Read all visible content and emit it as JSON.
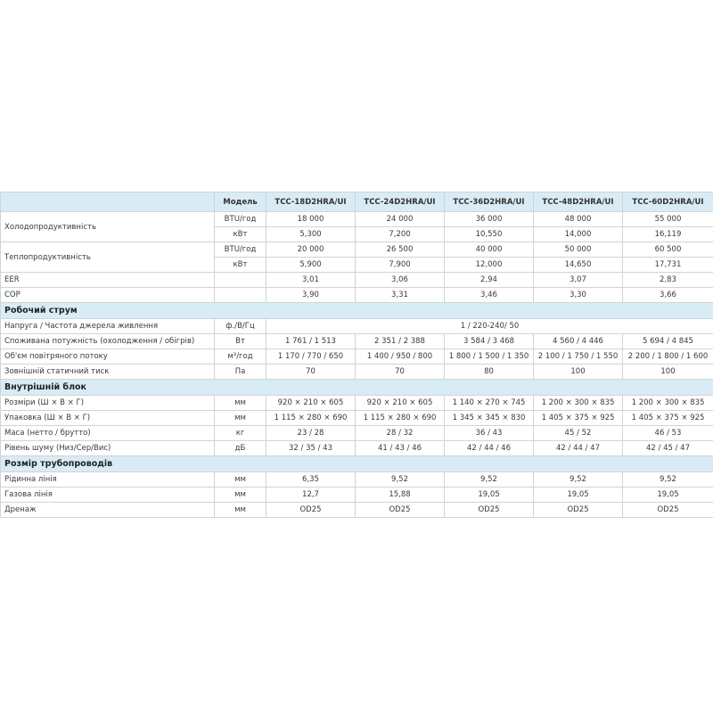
{
  "table": {
    "header": {
      "label": "Модель",
      "models": [
        "TCC-18D2HRA/UI",
        "TCC-24D2HRA/UI",
        "TCC-36D2HRA/UI",
        "TCC-48D2HRA/UI",
        "TCC-60D2HRA/UI"
      ]
    },
    "groups": [
      {
        "rows": [
          {
            "label": "Холодопродуктивність",
            "lines": [
              {
                "unit": "BTU/год",
                "values": [
                  "18 000",
                  "24 000",
                  "36 000",
                  "48 000",
                  "55 000"
                ]
              },
              {
                "unit": "кВт",
                "values": [
                  "5,300",
                  "7,200",
                  "10,550",
                  "14,000",
                  "16,119"
                ]
              }
            ]
          },
          {
            "label": "Теплопродуктивність",
            "lines": [
              {
                "unit": "BTU/год",
                "values": [
                  "20 000",
                  "26 500",
                  "40 000",
                  "50 000",
                  "60 500"
                ]
              },
              {
                "unit": "кВт",
                "values": [
                  "5,900",
                  "7,900",
                  "12,000",
                  "14,650",
                  "17,731"
                ]
              }
            ]
          },
          {
            "label": "EER",
            "values": [
              "3,01",
              "3,06",
              "2,94",
              "3,07",
              "2,83"
            ]
          },
          {
            "label": "COP",
            "values": [
              "3,90",
              "3,31",
              "3,46",
              "3,30",
              "3,66"
            ]
          }
        ]
      },
      {
        "title": "Робочий струм",
        "rows": [
          {
            "label": "Напруга / Частота джерела живлення",
            "unit": "ф./В/Гц",
            "value": "1 / 220-240/ 50"
          },
          {
            "label": "Споживана потужність (охолодження / обігрів)",
            "unit": "Вт",
            "values": [
              "1 761 / 1 513",
              "2 351 / 2 388",
              "3 584 / 3 468",
              "4 560 / 4 446",
              "5 694 / 4 845"
            ]
          },
          {
            "label": "Об'єм повітряного потоку",
            "unit": "м³/год",
            "values": [
              "1 170 / 770 / 650",
              "1 400 / 950 / 800",
              "1 800 / 1 500 / 1 350",
              "2 100 / 1 750 / 1 550",
              "2 200 / 1 800 / 1 600"
            ]
          },
          {
            "label": "Зовнішній статичний тиск",
            "unit": "Па",
            "values": [
              "70",
              "70",
              "80",
              "100",
              "100"
            ]
          }
        ]
      },
      {
        "title": "Внутрішній блок",
        "rows": [
          {
            "label": "Розміри (Ш × В × Г)",
            "unit": "мм",
            "values": [
              "920 × 210 × 605",
              "920 × 210 × 605",
              "1 140 × 270 × 745",
              "1 200 × 300 × 835",
              "1 200 × 300 × 835"
            ]
          },
          {
            "label": "Упаковка (Ш × В × Г)",
            "unit": "мм",
            "values": [
              "1 115 × 280 × 690",
              "1 115 × 280 × 690",
              "1 345 × 345 × 830",
              "1 405 × 375 × 925",
              "1 405 × 375 × 925"
            ]
          },
          {
            "label": "Маса (нетто / брутто)",
            "unit": "кг",
            "values": [
              "23 / 28",
              "28 / 32",
              "36 / 43",
              "45 / 52",
              "46 / 53"
            ]
          },
          {
            "label": "Рівень шуму (Низ/Сер/Вис)",
            "unit": "дБ",
            "values": [
              "32 / 35 / 43",
              "41 / 43 / 46",
              "42 / 44 / 46",
              "42 / 44 / 47",
              "42 / 45 / 47"
            ]
          }
        ]
      },
      {
        "title": "Розмір трубопроводів",
        "rows": [
          {
            "label": "Рідинна лінія",
            "unit": "мм",
            "values": [
              "6,35",
              "9,52",
              "9,52",
              "9,52",
              "9,52"
            ]
          },
          {
            "label": "Газова лінія",
            "unit": "мм",
            "values": [
              "12,7",
              "15,88",
              "19,05",
              "19,05",
              "19,05"
            ]
          },
          {
            "label": "Дренаж",
            "unit": "мм",
            "values": [
              "OD25",
              "OD25",
              "OD25",
              "OD25",
              "OD25"
            ]
          }
        ]
      }
    ]
  }
}
